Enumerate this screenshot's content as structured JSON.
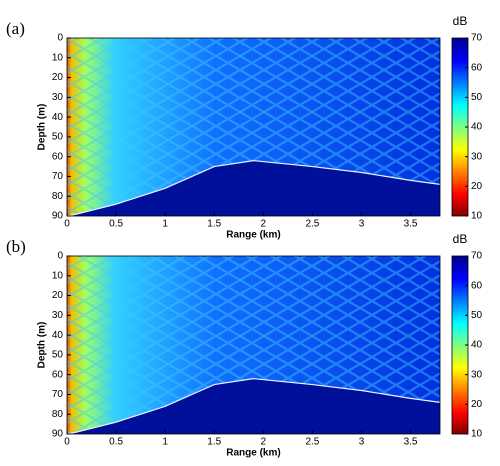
{
  "chart_data": [
    {
      "type": "heatmap",
      "panel_label": "(a)",
      "xlabel": "Range (km)",
      "ylabel": "Depth (m)",
      "xlim": [
        0,
        3.8
      ],
      "xticks": [
        0,
        0.5,
        1,
        1.5,
        2,
        2.5,
        3,
        3.5
      ],
      "ylim": [
        0,
        90
      ],
      "yticks": [
        0,
        10,
        20,
        30,
        40,
        50,
        60,
        70,
        80,
        90
      ],
      "colorbar": {
        "label": "dB",
        "lim": [
          10,
          70
        ],
        "ticks": [
          10,
          20,
          30,
          40,
          50,
          60,
          70
        ]
      },
      "seabed": {
        "x": [
          0,
          0.1,
          0.5,
          1,
          1.5,
          1.9,
          2.5,
          3,
          3.5,
          3.8
        ],
        "y": [
          90,
          89,
          84,
          76,
          65,
          62,
          65,
          68,
          72,
          74
        ]
      }
    },
    {
      "type": "heatmap",
      "panel_label": "(b)",
      "xlabel": "Range (km)",
      "ylabel": "Depth (m)",
      "xlim": [
        0,
        3.8
      ],
      "xticks": [
        0,
        0.5,
        1,
        1.5,
        2,
        2.5,
        3,
        3.5
      ],
      "ylim": [
        0,
        90
      ],
      "yticks": [
        0,
        10,
        20,
        30,
        40,
        50,
        60,
        70,
        80,
        90
      ],
      "colorbar": {
        "label": "dB",
        "lim": [
          10,
          70
        ],
        "ticks": [
          10,
          20,
          30,
          40,
          50,
          60,
          70
        ]
      },
      "seabed": {
        "x": [
          0,
          0.1,
          0.5,
          1,
          1.5,
          1.9,
          2.5,
          3,
          3.5,
          3.8
        ],
        "y": [
          90,
          89,
          84,
          76,
          65,
          62,
          65,
          68,
          72,
          74
        ]
      }
    }
  ]
}
